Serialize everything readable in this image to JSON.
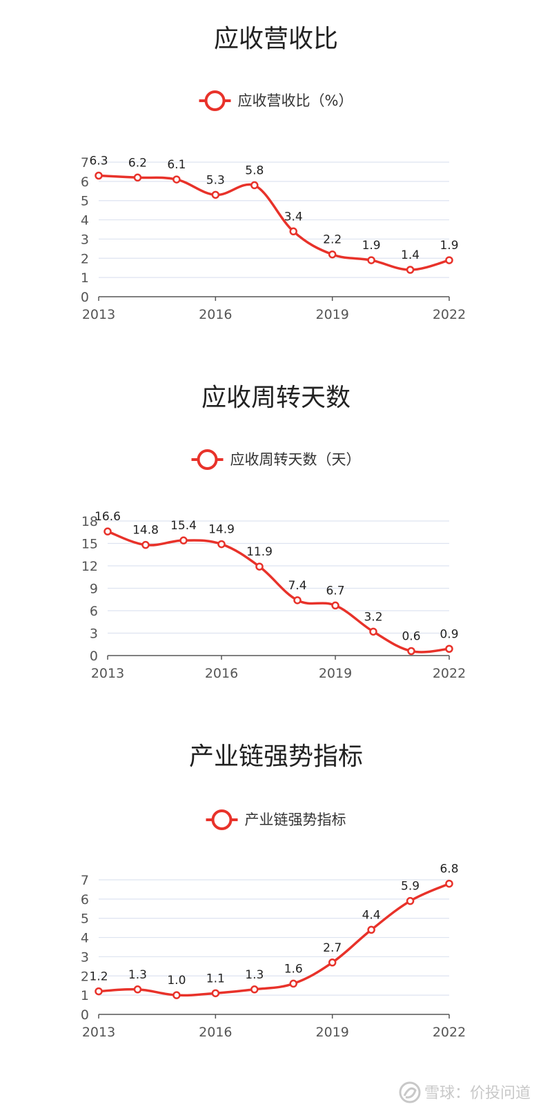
{
  "charts": [
    {
      "title": "应收营收比",
      "legend": "应收营收比（%）",
      "chart_data": {
        "type": "line",
        "title": "应收营收比",
        "x": [
          2013,
          2014,
          2015,
          2016,
          2017,
          2018,
          2019,
          2020,
          2021,
          2022
        ],
        "x_tick_labels": [
          "2013",
          "2016",
          "2019",
          "2022"
        ],
        "y_ticks": [
          0,
          1,
          2,
          3,
          4,
          5,
          6,
          7
        ],
        "ylim": [
          0,
          7
        ],
        "series": [
          {
            "name": "应收营收比（%）",
            "values": [
              6.3,
              6.2,
              6.1,
              5.3,
              5.8,
              3.4,
              2.2,
              1.9,
              1.4,
              1.9
            ],
            "labels": [
              "6.3",
              "6.2",
              "6.1",
              "5.3",
              "5.8",
              "3.4",
              "2.2",
              "1.9",
              "1.4",
              "1.9"
            ]
          }
        ],
        "legend_position": "top-center",
        "grid": true,
        "smooth": true
      }
    },
    {
      "title": "应收周转天数",
      "legend": "应收周转天数（天）",
      "chart_data": {
        "type": "line",
        "title": "应收周转天数",
        "x": [
          2013,
          2014,
          2015,
          2016,
          2017,
          2018,
          2019,
          2020,
          2021,
          2022
        ],
        "x_tick_labels": [
          "2013",
          "2016",
          "2019",
          "2022"
        ],
        "y_ticks": [
          0,
          3,
          6,
          9,
          12,
          15,
          18
        ],
        "ylim": [
          0,
          18
        ],
        "series": [
          {
            "name": "应收周转天数（天）",
            "values": [
              16.6,
              14.8,
              15.4,
              14.9,
              11.9,
              7.4,
              6.7,
              3.2,
              0.6,
              0.9
            ],
            "labels": [
              "16.6",
              "14.8",
              "15.4",
              "14.9",
              "11.9",
              "7.4",
              "6.7",
              "3.2",
              "0.6",
              "0.9"
            ]
          }
        ],
        "legend_position": "top-center",
        "grid": true,
        "smooth": true
      }
    },
    {
      "title": "产业链强势指标",
      "legend": "产业链强势指标",
      "chart_data": {
        "type": "line",
        "title": "产业链强势指标",
        "x": [
          2013,
          2014,
          2015,
          2016,
          2017,
          2018,
          2019,
          2020,
          2021,
          2022
        ],
        "x_tick_labels": [
          "2013",
          "2016",
          "2019",
          "2022"
        ],
        "y_ticks": [
          0,
          1,
          2,
          3,
          4,
          5,
          6,
          7
        ],
        "ylim": [
          0,
          7
        ],
        "series": [
          {
            "name": "产业链强势指标",
            "values": [
              1.2,
              1.3,
              1.0,
              1.1,
              1.3,
              1.6,
              2.7,
              4.4,
              5.9,
              6.8
            ],
            "labels": [
              "1.2",
              "1.3",
              "1.0",
              "1.1",
              "1.3",
              "1.6",
              "2.7",
              "4.4",
              "5.9",
              "6.8"
            ]
          }
        ],
        "legend_position": "top-center",
        "grid": true,
        "smooth": true
      }
    }
  ],
  "colors": {
    "series": "#e8322a",
    "grid": "#dde3f0",
    "axis": "#555555"
  },
  "watermark": {
    "icon": "snowball-logo-icon",
    "text": "雪球：价投问道"
  }
}
